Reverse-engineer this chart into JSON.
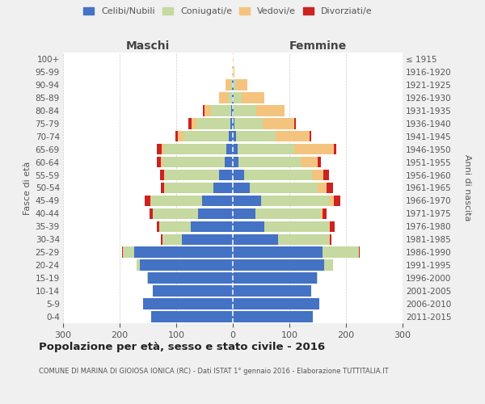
{
  "age_groups": [
    "0-4",
    "5-9",
    "10-14",
    "15-19",
    "20-24",
    "25-29",
    "30-34",
    "35-39",
    "40-44",
    "45-49",
    "50-54",
    "55-59",
    "60-64",
    "65-69",
    "70-74",
    "75-79",
    "80-84",
    "85-89",
    "90-94",
    "95-99",
    "100+"
  ],
  "birth_years": [
    "2011-2015",
    "2006-2010",
    "2001-2005",
    "1996-2000",
    "1991-1995",
    "1986-1990",
    "1981-1985",
    "1976-1980",
    "1971-1975",
    "1966-1970",
    "1961-1965",
    "1956-1960",
    "1951-1955",
    "1946-1950",
    "1941-1945",
    "1936-1940",
    "1931-1935",
    "1926-1930",
    "1921-1925",
    "1916-1920",
    "≤ 1915"
  ],
  "colors": {
    "celibi": "#4472c4",
    "coniugati": "#c5d9a0",
    "vedovi": "#f4c47e",
    "divorziati": "#cc2222"
  },
  "maschi": {
    "celibi": [
      145,
      158,
      142,
      150,
      165,
      175,
      90,
      75,
      62,
      55,
      35,
      25,
      14,
      12,
      7,
      5,
      3,
      1,
      1,
      0,
      0
    ],
    "coniugati": [
      0,
      0,
      0,
      1,
      5,
      20,
      35,
      55,
      80,
      90,
      85,
      95,
      110,
      110,
      80,
      60,
      35,
      8,
      2,
      0,
      0
    ],
    "vedovi": [
      0,
      0,
      0,
      0,
      0,
      0,
      0,
      0,
      0,
      1,
      2,
      2,
      3,
      4,
      10,
      8,
      12,
      15,
      10,
      1,
      0
    ],
    "divorziati": [
      0,
      0,
      0,
      0,
      0,
      1,
      2,
      5,
      5,
      10,
      5,
      6,
      8,
      8,
      5,
      5,
      3,
      0,
      0,
      0,
      0
    ]
  },
  "femmine": {
    "celibi": [
      142,
      153,
      138,
      148,
      162,
      158,
      80,
      55,
      40,
      50,
      30,
      20,
      10,
      8,
      5,
      3,
      2,
      1,
      1,
      0,
      0
    ],
    "coniugati": [
      0,
      0,
      0,
      2,
      15,
      65,
      90,
      115,
      115,
      120,
      120,
      120,
      110,
      100,
      70,
      50,
      40,
      15,
      5,
      1,
      0
    ],
    "vedovi": [
      0,
      0,
      0,
      0,
      0,
      0,
      1,
      2,
      3,
      8,
      15,
      20,
      30,
      70,
      60,
      55,
      50,
      40,
      20,
      2,
      1
    ],
    "divorziati": [
      0,
      0,
      0,
      0,
      0,
      1,
      3,
      8,
      8,
      12,
      12,
      10,
      5,
      5,
      3,
      3,
      0,
      0,
      0,
      0,
      0
    ]
  },
  "xlim": 300,
  "title": "Popolazione per età, sesso e stato civile - 2016",
  "subtitle": "COMUNE DI MARINA DI GIOIOSA IONICA (RC) - Dati ISTAT 1° gennaio 2016 - Elaborazione TUTTITALIA.IT",
  "ylabel_left": "Fasce di età",
  "ylabel_right": "Anni di nascita",
  "xlabel_maschi": "Maschi",
  "xlabel_femmine": "Femmine",
  "legend_labels": [
    "Celibi/Nubili",
    "Coniugati/e",
    "Vedovi/e",
    "Divorziati/e"
  ],
  "bg_color": "#f0f0f0",
  "plot_bg": "#ffffff"
}
